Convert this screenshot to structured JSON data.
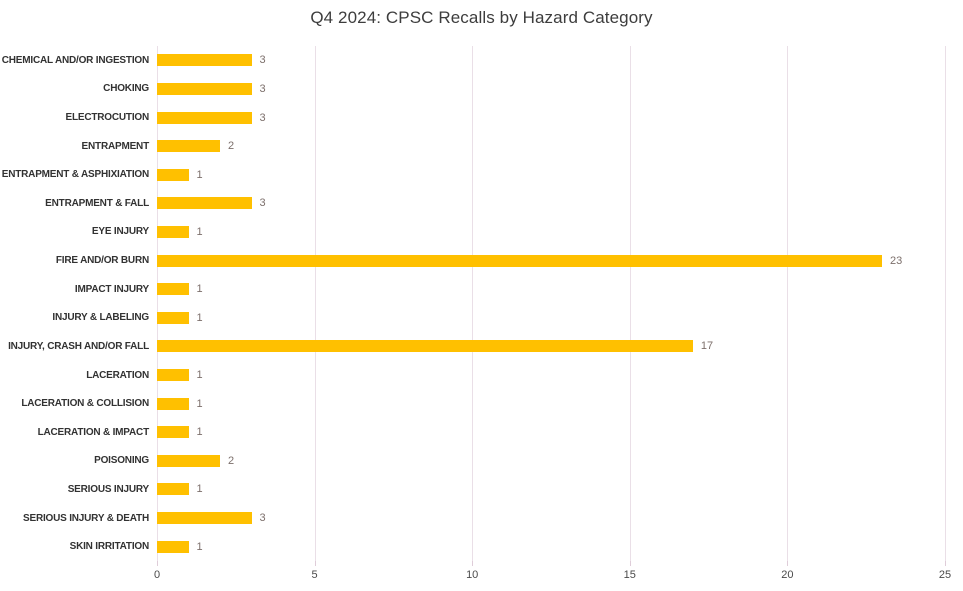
{
  "chart_data": {
    "type": "bar",
    "orientation": "horizontal",
    "title": "Q4 2024: CPSC Recalls by Hazard Category",
    "categories": [
      "CHEMICAL AND/OR INGESTION",
      "CHOKING",
      "ELECTROCUTION",
      "ENTRAPMENT",
      "ENTRAPMENT & ASPHIXIATION",
      "ENTRAPMENT & FALL",
      "EYE INJURY",
      "FIRE AND/OR BURN",
      "IMPACT INJURY",
      "INJURY & LABELING",
      "INJURY, CRASH AND/OR FALL",
      "LACERATION",
      "LACERATION & COLLISION",
      "LACERATION & IMPACT",
      "POISONING",
      "SERIOUS INJURY",
      "SERIOUS INJURY & DEATH",
      "SKIN IRRITATION"
    ],
    "values": [
      3,
      3,
      3,
      2,
      1,
      3,
      1,
      23,
      1,
      1,
      17,
      1,
      1,
      1,
      2,
      1,
      3,
      1
    ],
    "xlabel": "",
    "ylabel": "",
    "xlim": [
      0,
      25
    ],
    "x_ticks": [
      0,
      5,
      10,
      15,
      20,
      25
    ],
    "grid": true,
    "legend": false,
    "data_labels": true,
    "colors": {
      "bar": "#FFC000",
      "gridline": "#eadfe7",
      "tick_mark": "#dfcdd9",
      "category_label": "#323232",
      "value_label": "#7c6f6b",
      "tick_label": "#4a4a4a",
      "title": "#3d3d3d",
      "background": "#ffffff"
    }
  }
}
